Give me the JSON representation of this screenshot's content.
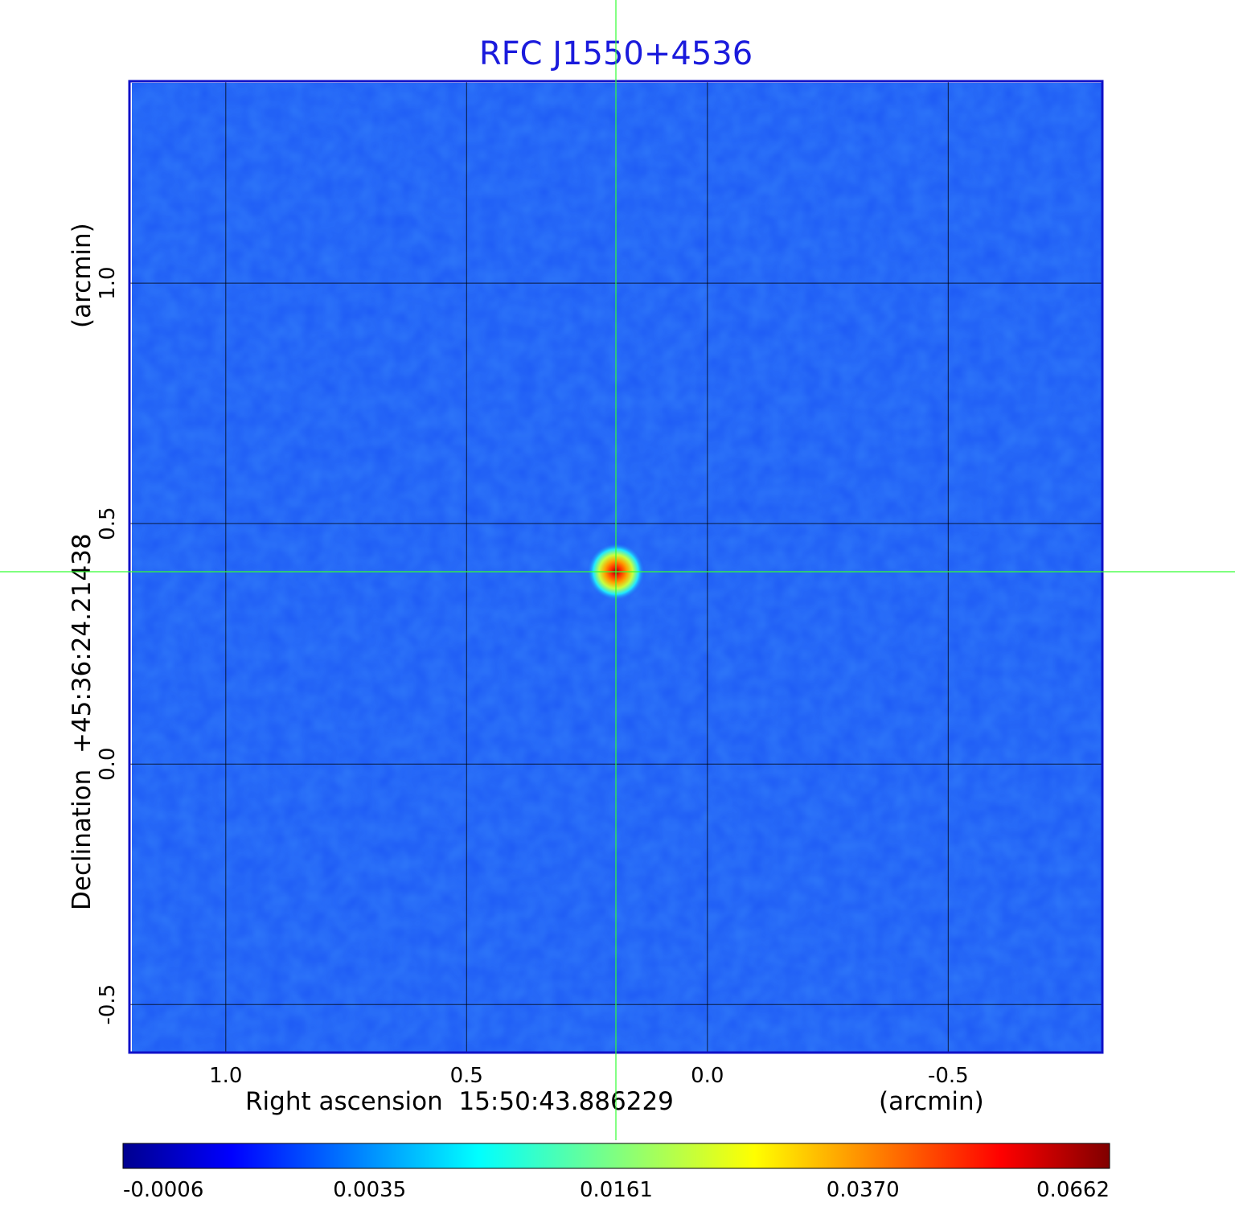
{
  "chart_data": {
    "type": "heatmap",
    "title": "RFC J1550+4536",
    "xlabel": "Right ascension  15:50:43.886229",
    "xunit": "(arcmin)",
    "ylabel": "Declination  +45:36:24.21438",
    "yunit": "(arcmin)",
    "xlim": [
      1.2,
      -0.82
    ],
    "ylim": [
      -0.6,
      1.42
    ],
    "x_ticks": [
      1.0,
      0.5,
      0.0,
      -0.5
    ],
    "x_tick_labels": [
      "1.0",
      "0.5",
      "0.0",
      "-0.5"
    ],
    "y_ticks": [
      1.0,
      0.5,
      0.0,
      -0.5
    ],
    "y_tick_labels": [
      "1.0",
      "0.5",
      "0.0",
      "-0.5"
    ],
    "grid": true,
    "crosshair": {
      "x": 0.19,
      "y": 0.4
    },
    "source": {
      "x": 0.19,
      "y": 0.4,
      "peak": 0.0662
    },
    "colorbar": {
      "colormap": "jet",
      "tick_labels": [
        "-0.0006",
        "0.0035",
        "0.0161",
        "0.0370",
        "0.0662"
      ],
      "tick_values": [
        -0.0006,
        0.0035,
        0.0161,
        0.037,
        0.0662
      ]
    },
    "colors": {
      "title": "#1a1adc",
      "frame": "#1010c8",
      "background_field": "#1e5af5",
      "crosshair": "#33ff33",
      "grid": "#000000"
    }
  }
}
